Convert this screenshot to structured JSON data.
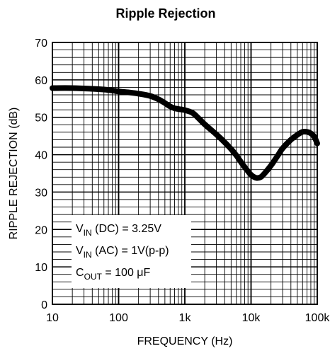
{
  "chart_data": {
    "type": "line",
    "title": "Ripple Rejection",
    "xlabel": "FREQUENCY (Hz)",
    "ylabel": "RIPPLE REJECTION (dB)",
    "x_scale": "log",
    "xlim": [
      10,
      100000
    ],
    "ylim": [
      0,
      70
    ],
    "x_ticks": [
      {
        "value": 10,
        "label": "10"
      },
      {
        "value": 100,
        "label": "100"
      },
      {
        "value": 1000,
        "label": "1k"
      },
      {
        "value": 10000,
        "label": "10k"
      },
      {
        "value": 100000,
        "label": "100k"
      }
    ],
    "y_ticks": [
      0,
      10,
      20,
      30,
      40,
      50,
      60,
      70
    ],
    "grid": true,
    "series": [
      {
        "color": "#000000",
        "x": [
          10,
          20,
          40,
          70,
          100,
          150,
          200,
          300,
          400,
          500,
          600,
          700,
          800,
          1000,
          1300,
          1600,
          2000,
          3000,
          4000,
          5000,
          6000,
          7000,
          8000,
          10000,
          12000,
          14000,
          16000,
          20000,
          25000,
          30000,
          40000,
          50000,
          60000,
          70000,
          80000,
          90000,
          100000
        ],
        "y": [
          57.8,
          57.8,
          57.6,
          57.3,
          56.9,
          56.6,
          56.3,
          55.7,
          54.8,
          53.8,
          52.9,
          52.4,
          52.2,
          51.9,
          51.2,
          49.8,
          48.1,
          45.4,
          43.3,
          41.5,
          39.8,
          38.1,
          36.7,
          34.6,
          33.8,
          34.0,
          35.0,
          37.1,
          39.6,
          41.7,
          44.0,
          45.3,
          46.1,
          46.1,
          45.7,
          44.8,
          43.0
        ]
      }
    ],
    "annotations": {
      "vin_dc_main": "V",
      "vin_dc_sub": "IN",
      "vin_dc_rest": " (DC) = 3.25V",
      "vin_ac_main": "V",
      "vin_ac_sub": "IN",
      "vin_ac_rest": " (AC) = 1V(p-p)",
      "cout_main": "C",
      "cout_sub": "OUT",
      "cout_rest": " = 100 μF"
    }
  }
}
